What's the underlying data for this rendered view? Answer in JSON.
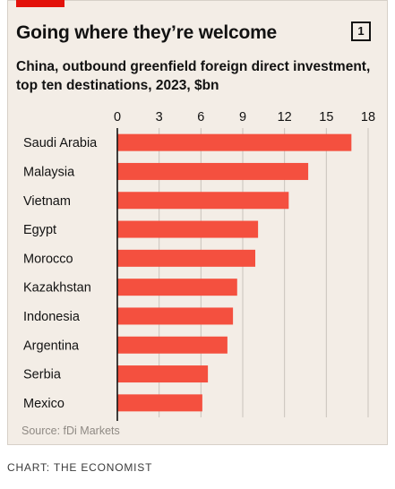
{
  "header": {
    "title": "Going where they’re welcome",
    "chart_number": "1",
    "subtitle": "China, outbound greenfield foreign direct investment, top ten destinations, 2023, $bn"
  },
  "footer": {
    "source": "Source: fDi Markets",
    "credit": "CHART: THE ECONOMIST"
  },
  "colors": {
    "bar": "#f4503f",
    "accent": "#e3120b",
    "background": "#f3ede6",
    "grid": "#c9c3bc"
  },
  "chart_data": {
    "type": "bar",
    "orientation": "horizontal",
    "categories": [
      "Saudi Arabia",
      "Malaysia",
      "Vietnam",
      "Egypt",
      "Morocco",
      "Kazakhstan",
      "Indonesia",
      "Argentina",
      "Serbia",
      "Mexico"
    ],
    "values": [
      16.8,
      13.7,
      12.3,
      10.1,
      9.9,
      8.6,
      8.3,
      7.9,
      6.5,
      6.1
    ],
    "title": "Going where they’re welcome",
    "subtitle": "China, outbound greenfield foreign direct investment, top ten destinations, 2023, $bn",
    "xlim": [
      0,
      18
    ],
    "xticks": [
      0,
      3,
      6,
      9,
      12,
      15,
      18
    ],
    "grid": true,
    "tick_position": "top",
    "legend": "none"
  }
}
